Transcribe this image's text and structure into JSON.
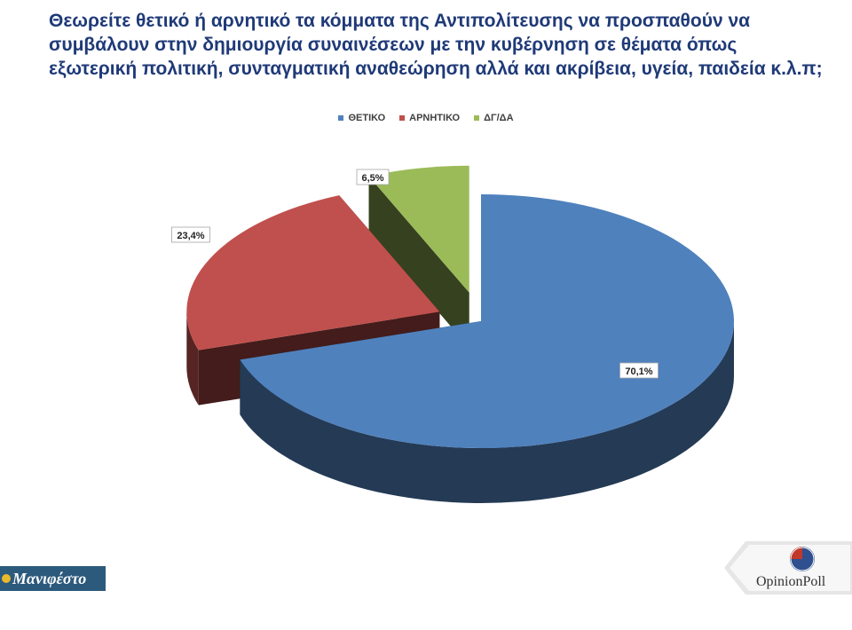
{
  "title": "Θεωρείτε θετικό ή αρνητικό τα κόμματα της Αντιπολίτευσης να προσπαθούν να συμβάλουν στην δημιουργία συναινέσεων με την κυβέρνηση σε θέματα όπως εξωτερική πολιτική, συνταγματική αναθεώρηση αλλά και ακρίβεια, υγεία, παιδεία κ.λ.π;",
  "chart_data": {
    "type": "pie",
    "style": "3d-exploded",
    "categories": [
      "ΘΕΤΙΚΟ",
      "ΑΡΝΗΤΙΚΟ",
      "ΔΓ/ΔΑ"
    ],
    "values": [
      70.1,
      23.4,
      6.5
    ],
    "labels": [
      "70,1%",
      "23,4%",
      "6,5%"
    ],
    "colors": [
      "#4f81bd",
      "#c0504d",
      "#9bbb59"
    ],
    "legend_position": "top"
  },
  "logos": {
    "left": "Μανιφέστο",
    "right": "OpinionPoll"
  }
}
